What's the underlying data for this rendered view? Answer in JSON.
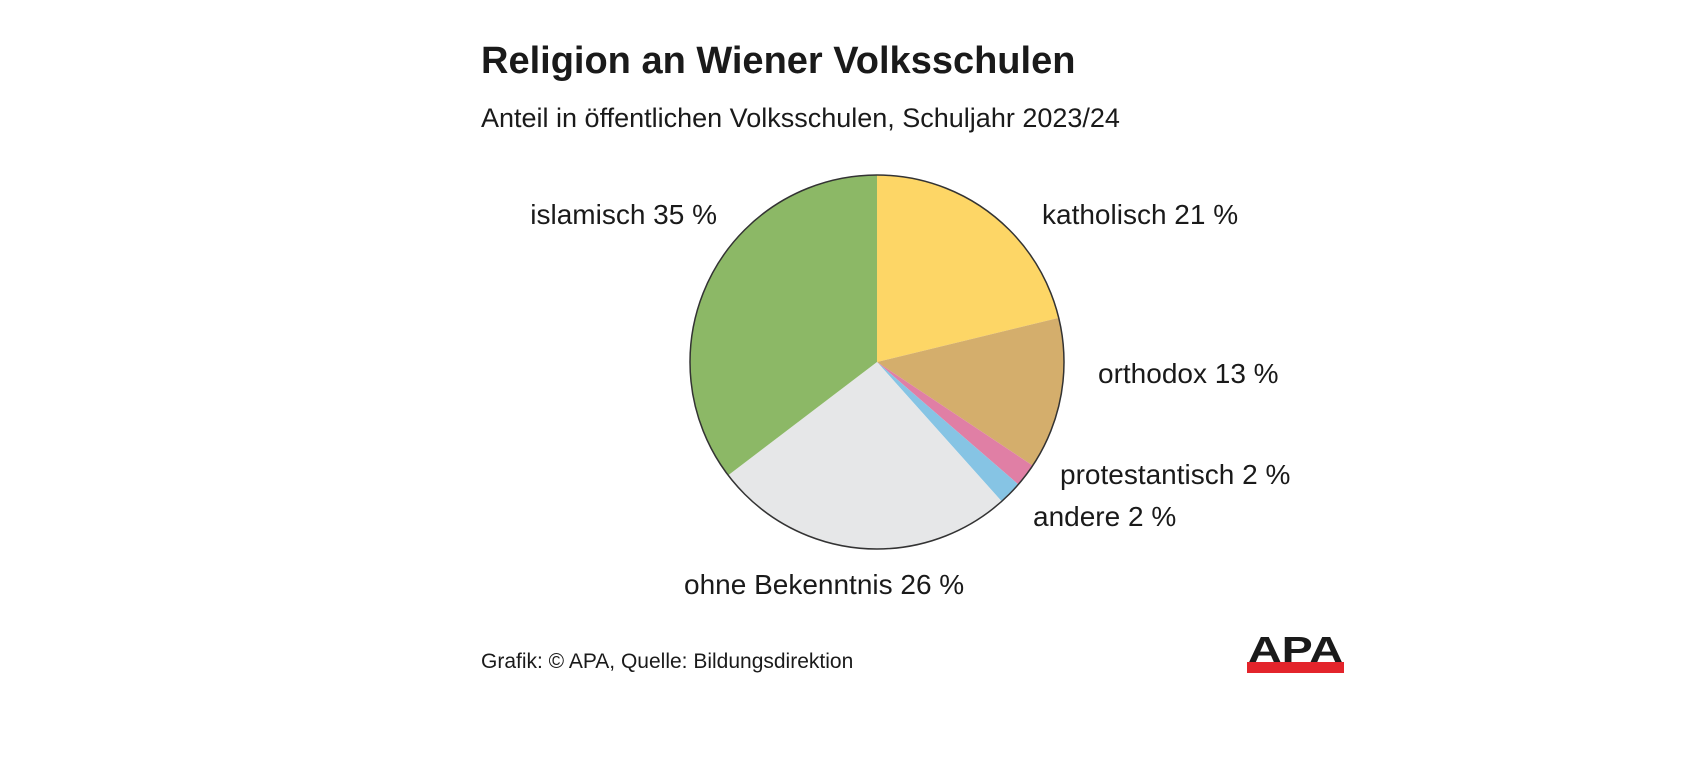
{
  "title": "Religion an Wiener Volksschulen",
  "subtitle": "Anteil in öffentlichen Volksschulen, Schuljahr 2023/24",
  "source": "Grafik: © APA, Quelle: Bildungsdirektion",
  "logo": {
    "text": "APA",
    "colors": {
      "letters": "#1a1a1a",
      "bar": "#e3242b"
    }
  },
  "chart_data": {
    "type": "pie",
    "title": "Religion an Wiener Volksschulen",
    "subtitle": "Anteil in öffentlichen Volksschulen, Schuljahr 2023/24",
    "start": "12 o'clock, clockwise",
    "slices": [
      {
        "name": "katholisch",
        "value": 21,
        "label": "katholisch 21 %",
        "color": "#fdd666"
      },
      {
        "name": "orthodox",
        "value": 13,
        "label": "orthodox 13 %",
        "color": "#d4ae6c"
      },
      {
        "name": "protestantisch",
        "value": 2,
        "label": "protestantisch 2 %",
        "color": "#e07fa5"
      },
      {
        "name": "andere",
        "value": 2,
        "label": "andere 2 %",
        "color": "#86c4e4"
      },
      {
        "name": "ohne Bekenntnis",
        "value": 26,
        "label": "ohne Bekenntnis 26 %",
        "color": "#e6e7e8"
      },
      {
        "name": "islamisch",
        "value": 35,
        "label": "islamisch 35 %",
        "color": "#8cb866"
      }
    ]
  }
}
